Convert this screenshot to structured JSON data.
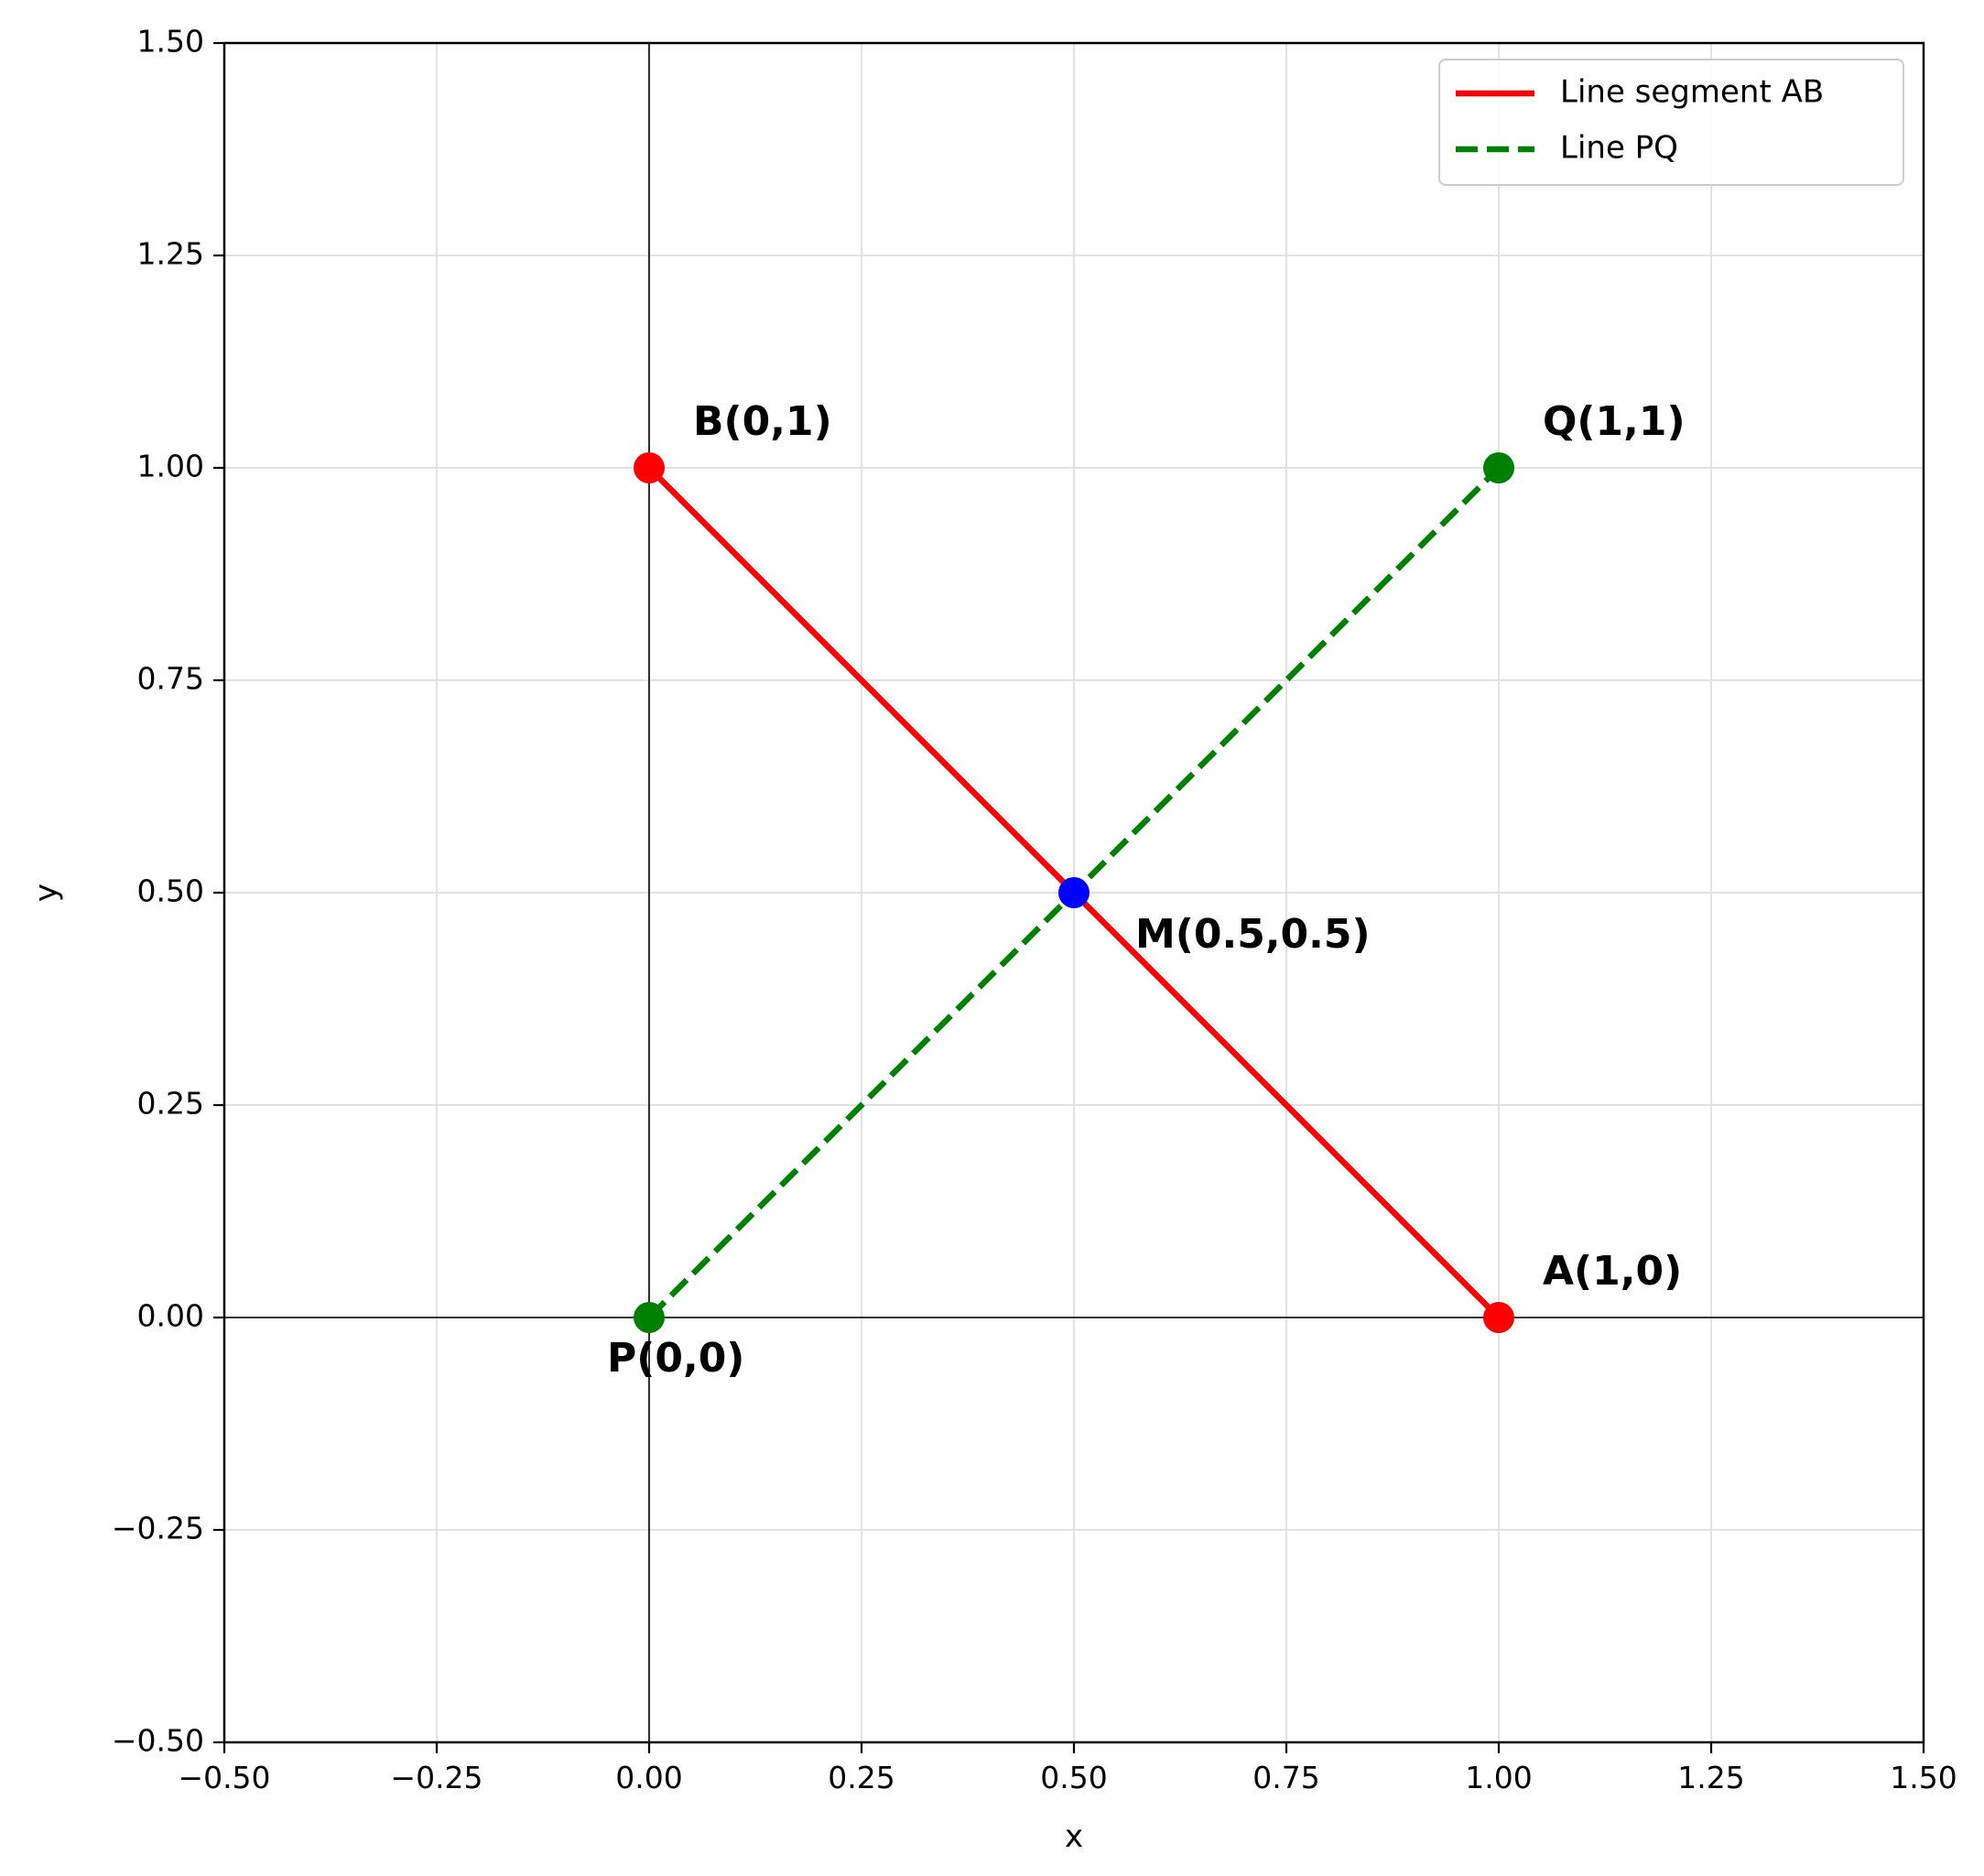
{
  "chart_data": {
    "type": "line",
    "title": "",
    "xlabel": "x",
    "ylabel": "y",
    "xlim": [
      -0.5,
      1.5
    ],
    "ylim": [
      -0.5,
      1.5
    ],
    "x_ticks": [
      -0.5,
      -0.25,
      0.0,
      0.25,
      0.5,
      0.75,
      1.0,
      1.25,
      1.5
    ],
    "y_ticks": [
      -0.5,
      -0.25,
      0.0,
      0.25,
      0.5,
      0.75,
      1.0,
      1.25,
      1.5
    ],
    "x_tick_labels": [
      "−0.50",
      "−0.25",
      "0.00",
      "0.25",
      "0.50",
      "0.75",
      "1.00",
      "1.25",
      "1.50"
    ],
    "y_tick_labels": [
      "−0.50",
      "−0.25",
      "0.00",
      "0.25",
      "0.50",
      "0.75",
      "1.00",
      "1.25",
      "1.50"
    ],
    "grid": true,
    "reference_lines": {
      "x": 0,
      "y": 0
    },
    "legend_position": "top-right",
    "series": [
      {
        "name": "Line segment AB",
        "color": "#ff0000",
        "style": "solid",
        "x": [
          1,
          0
        ],
        "y": [
          0,
          1
        ]
      },
      {
        "name": "Line PQ",
        "color": "#008000",
        "style": "dashed",
        "x": [
          0,
          1
        ],
        "y": [
          0,
          1
        ]
      }
    ],
    "points": [
      {
        "label": "A(1,0)",
        "x": 1,
        "y": 0,
        "color": "#ff0000"
      },
      {
        "label": "B(0,1)",
        "x": 0,
        "y": 1,
        "color": "#ff0000"
      },
      {
        "label": "P(0,0)",
        "x": 0,
        "y": 0,
        "color": "#008000"
      },
      {
        "label": "Q(1,1)",
        "x": 1,
        "y": 1,
        "color": "#008000"
      },
      {
        "label": "M(0.5,0.5)",
        "x": 0.5,
        "y": 0.5,
        "color": "#0000ff"
      }
    ]
  }
}
